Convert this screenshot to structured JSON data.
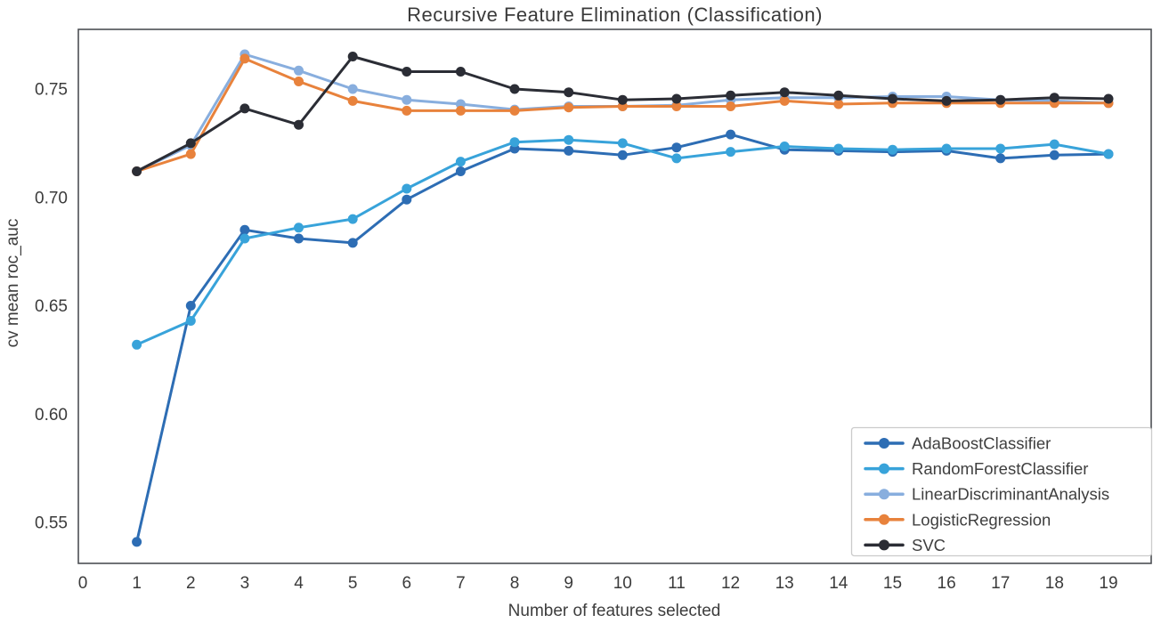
{
  "chart_data": {
    "type": "line",
    "title": "Recursive Feature Elimination (Classification)",
    "xlabel": "Number of features selected",
    "ylabel": "cv mean roc_auc",
    "x": [
      1,
      2,
      3,
      4,
      5,
      6,
      7,
      8,
      9,
      10,
      11,
      12,
      13,
      14,
      15,
      16,
      17,
      18,
      19
    ],
    "xticks": [
      0,
      1,
      2,
      3,
      4,
      5,
      6,
      7,
      8,
      9,
      10,
      11,
      12,
      13,
      14,
      15,
      16,
      17,
      18,
      19
    ],
    "yticks": [
      0.55,
      0.6,
      0.65,
      0.7,
      0.75
    ],
    "xlim": [
      -0.08,
      19.79
    ],
    "ylim": [
      0.531,
      0.7775
    ],
    "grid": false,
    "markers": "circle",
    "legend_position": "lower right",
    "series": [
      {
        "name": "AdaBoostClassifier",
        "color": "#2d6db4",
        "values": [
          0.541,
          0.65,
          0.685,
          0.681,
          0.679,
          0.699,
          0.712,
          0.7225,
          0.7215,
          0.7195,
          0.723,
          0.729,
          0.722,
          0.7215,
          0.721,
          0.7215,
          0.718,
          0.7195,
          0.72
        ]
      },
      {
        "name": "RandomForestClassifier",
        "color": "#38a3da",
        "values": [
          0.632,
          0.643,
          0.681,
          0.686,
          0.69,
          0.704,
          0.7165,
          0.7255,
          0.7265,
          0.725,
          0.718,
          0.721,
          0.7235,
          0.7225,
          0.722,
          0.7225,
          0.7225,
          0.7245,
          0.72
        ]
      },
      {
        "name": "LinearDiscriminantAnalysis",
        "color": "#88aede",
        "values": [
          0.712,
          0.724,
          0.766,
          0.7585,
          0.75,
          0.745,
          0.743,
          0.7405,
          0.742,
          0.742,
          0.7425,
          0.745,
          0.746,
          0.746,
          0.7465,
          0.7465,
          0.745,
          0.7445,
          0.7435
        ]
      },
      {
        "name": "LogisticRegression",
        "color": "#e8823c",
        "values": [
          0.712,
          0.72,
          0.764,
          0.7535,
          0.7445,
          0.74,
          0.74,
          0.74,
          0.7415,
          0.742,
          0.742,
          0.742,
          0.7445,
          0.743,
          0.7435,
          0.7435,
          0.7435,
          0.7435,
          0.7435
        ]
      },
      {
        "name": "SVC",
        "color": "#2b2d35",
        "values": [
          0.712,
          0.725,
          0.741,
          0.7335,
          0.765,
          0.758,
          0.758,
          0.75,
          0.7485,
          0.745,
          0.7455,
          0.747,
          0.7485,
          0.747,
          0.7455,
          0.7445,
          0.745,
          0.746,
          0.7455
        ]
      }
    ]
  },
  "style_colors": {
    "spine": "#4c4f54",
    "tick_label": "#3b3b3b",
    "title": "#3a3a3a",
    "legend_border": "#cbcbcb",
    "legend_background": "#ffffff"
  }
}
